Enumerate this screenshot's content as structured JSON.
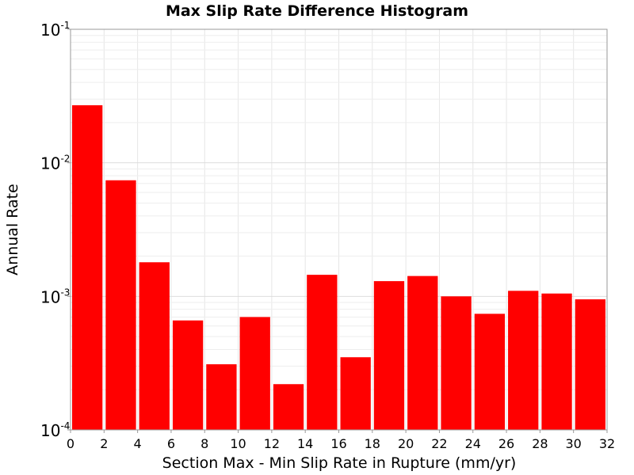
{
  "chart_data": {
    "type": "bar",
    "title": "Max Slip Rate Difference Histogram",
    "xlabel": "Section Max - Min Slip Rate in Rupture (mm/yr)",
    "ylabel": "Annual Rate",
    "yscale": "log",
    "xlim": [
      0,
      32
    ],
    "ylim": [
      0.0001,
      0.1
    ],
    "grid": true,
    "bar_color": "#ff0000",
    "bin_width": 2,
    "bin_centers": [
      1,
      3,
      5,
      7,
      9,
      11,
      13,
      15,
      17,
      19,
      21,
      23,
      25,
      27,
      29,
      31
    ],
    "values": [
      0.027,
      0.0074,
      0.0018,
      0.00066,
      0.00031,
      0.0007,
      0.00022,
      0.00145,
      0.00035,
      0.0013,
      0.00142,
      0.001,
      0.00074,
      0.0011,
      0.00105,
      0.00095
    ],
    "x_ticks": [
      "0",
      "2",
      "4",
      "6",
      "8",
      "10",
      "12",
      "14",
      "16",
      "18",
      "20",
      "22",
      "24",
      "26",
      "28",
      "30",
      "32"
    ],
    "y_ticks": [
      {
        "value": 0.0001,
        "base": "10",
        "exp": "-4"
      },
      {
        "value": 0.001,
        "base": "10",
        "exp": "-3"
      },
      {
        "value": 0.01,
        "base": "10",
        "exp": "-2"
      },
      {
        "value": 0.1,
        "base": "10",
        "exp": "-1"
      }
    ]
  }
}
